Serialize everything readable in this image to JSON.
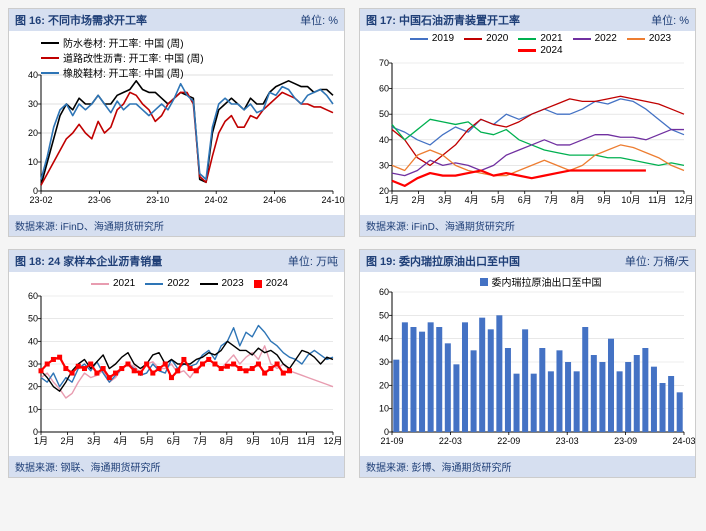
{
  "grid": {
    "panels": [
      {
        "id": "p16",
        "title_left": "图 16:    不同市场需求开工率",
        "title_right": "单位: %",
        "footer": "数据来源: iFinD、海通期货研究所",
        "chart": {
          "type": "line",
          "bg": "#ffffff",
          "grid_color": "#bfbfbf",
          "axis_color": "#000000",
          "label_fontsize": 9,
          "ylim": [
            0,
            40
          ],
          "ytick_step": 10,
          "xlabels": [
            "23-02",
            "23-06",
            "23-10",
            "24-02",
            "24-06",
            "24-10"
          ],
          "xindex": 47,
          "series": [
            {
              "name": "防水卷材: 开工率: 中国 (周)",
              "color": "#000000",
              "width": 1.6,
              "y": [
                2,
                10,
                18,
                26,
                30,
                28,
                32,
                30,
                30,
                33,
                30,
                30,
                33,
                34,
                35,
                38,
                35,
                34,
                34,
                32,
                30,
                32,
                34,
                33,
                32,
                4,
                3,
                20,
                28,
                30,
                32,
                30,
                28,
                32,
                30,
                30,
                34,
                36,
                37,
                38,
                37,
                36,
                36,
                34,
                35,
                35,
                33
              ]
            },
            {
              "name": "道路改性沥青: 开工率: 中国 (周)",
              "color": "#c00000",
              "width": 1.6,
              "y": [
                2,
                6,
                10,
                14,
                18,
                20,
                23,
                20,
                18,
                24,
                20,
                22,
                28,
                30,
                34,
                33,
                30,
                28,
                24,
                26,
                30,
                32,
                34,
                34,
                30,
                5,
                3,
                12,
                20,
                24,
                26,
                22,
                22,
                26,
                25,
                28,
                30,
                32,
                34,
                33,
                32,
                30,
                30,
                29,
                29,
                28,
                27
              ]
            },
            {
              "name": "橡胶鞋材: 开工率: 中国 (周)",
              "color": "#2e75b6",
              "width": 1.6,
              "y": [
                4,
                12,
                22,
                28,
                30,
                26,
                30,
                28,
                30,
                33,
                30,
                27,
                31,
                28,
                30,
                30,
                28,
                26,
                28,
                30,
                28,
                32,
                37,
                33,
                31,
                6,
                4,
                22,
                30,
                32,
                30,
                30,
                28,
                30,
                27,
                28,
                34,
                33,
                36,
                35,
                32,
                30,
                33,
                34,
                35,
                33,
                30
              ]
            }
          ]
        }
      },
      {
        "id": "p17",
        "title_left": "图 17:    中国石油沥青装置开工率",
        "title_right": "单位: %",
        "footer": "数据来源: iFinD、海通期货研究所",
        "chart": {
          "type": "line",
          "bg": "#ffffff",
          "grid_color": "#d9d9d9",
          "axis_color": "#000000",
          "label_fontsize": 9,
          "ylim": [
            20,
            70
          ],
          "ytick_step": 10,
          "xlabels": [
            "1月",
            "2月",
            "3月",
            "4月",
            "5月",
            "6月",
            "7月",
            "8月",
            "9月",
            "10月",
            "11月",
            "12月"
          ],
          "xindex": 23,
          "series": [
            {
              "name": "2019",
              "color": "#4472c4",
              "width": 1.3,
              "y": [
                45,
                43,
                40,
                38,
                42,
                45,
                43,
                48,
                46,
                50,
                48,
                50,
                52,
                50,
                50,
                52,
                55,
                54,
                56,
                55,
                52,
                48,
                44,
                42
              ]
            },
            {
              "name": "2020",
              "color": "#c00000",
              "width": 1.3,
              "y": [
                44,
                40,
                33,
                30,
                34,
                38,
                44,
                48,
                46,
                45,
                47,
                50,
                52,
                54,
                56,
                55,
                55,
                56,
                57,
                56,
                55,
                54,
                52,
                50
              ]
            },
            {
              "name": "2021",
              "color": "#00b050",
              "width": 1.3,
              "y": [
                46,
                40,
                44,
                48,
                47,
                46,
                47,
                43,
                42,
                44,
                40,
                38,
                36,
                35,
                34,
                34,
                34,
                33,
                33,
                32,
                31,
                30,
                31,
                30
              ]
            },
            {
              "name": "2022",
              "color": "#7030a0",
              "width": 1.3,
              "y": [
                27,
                26,
                28,
                32,
                30,
                31,
                30,
                28,
                30,
                34,
                36,
                38,
                40,
                38,
                38,
                40,
                42,
                42,
                41,
                41,
                40,
                42,
                44,
                44
              ]
            },
            {
              "name": "2023",
              "color": "#ed7d31",
              "width": 1.3,
              "y": [
                30,
                28,
                34,
                36,
                34,
                30,
                28,
                27,
                26,
                26,
                28,
                30,
                32,
                30,
                28,
                30,
                34,
                36,
                38,
                37,
                35,
                33,
                30,
                28
              ]
            },
            {
              "name": "2024",
              "color": "#ff0000",
              "width": 2.2,
              "y": [
                24,
                22,
                25,
                27,
                26,
                26,
                27,
                28,
                26,
                27,
                26,
                25,
                26,
                27,
                28,
                28,
                28,
                28,
                28,
                28,
                28,
                null,
                null,
                null
              ]
            }
          ]
        }
      },
      {
        "id": "p18",
        "title_left": "图 18:    24 家样本企业沥青销量",
        "title_right": "单位: 万吨",
        "footer": "数据来源: 钢联、海通期货研究所",
        "chart": {
          "type": "line",
          "bg": "#ffffff",
          "grid_color": "#d9d9d9",
          "axis_color": "#000000",
          "label_fontsize": 9,
          "ylim": [
            0,
            60
          ],
          "ytick_step": 10,
          "xlabels": [
            "1月",
            "2月",
            "3月",
            "4月",
            "5月",
            "6月",
            "7月",
            "8月",
            "9月",
            "10月",
            "11月",
            "12月"
          ],
          "xindex": 47,
          "series": [
            {
              "name": "2021",
              "color": "#e89cb0",
              "width": 1.4,
              "marker": "none",
              "y": [
                24,
                26,
                22,
                19,
                15,
                17,
                22,
                26,
                24,
                25,
                27,
                22,
                24,
                28,
                30,
                29,
                26,
                30,
                31,
                28,
                28,
                30,
                26,
                27,
                24,
                28,
                30,
                32,
                30,
                28,
                31,
                34,
                30,
                33,
                35,
                32,
                38,
                30,
                28,
                30,
                27,
                26,
                25,
                24,
                23,
                22,
                21,
                20
              ]
            },
            {
              "name": "2022",
              "color": "#2e75b6",
              "width": 1.4,
              "marker": "none",
              "y": [
                24,
                22,
                26,
                20,
                24,
                22,
                28,
                30,
                27,
                31,
                26,
                22,
                25,
                28,
                30,
                28,
                25,
                26,
                30,
                27,
                26,
                32,
                28,
                30,
                29,
                30,
                34,
                36,
                32,
                38,
                40,
                46,
                38,
                44,
                42,
                47,
                44,
                40,
                38,
                35,
                33,
                32,
                30,
                34,
                36,
                34,
                32,
                33
              ]
            },
            {
              "name": "2023",
              "color": "#000000",
              "width": 1.4,
              "marker": "none",
              "y": [
                27,
                24,
                20,
                18,
                22,
                27,
                30,
                32,
                28,
                31,
                34,
                28,
                30,
                33,
                35,
                30,
                28,
                30,
                34,
                35,
                30,
                32,
                30,
                30,
                30,
                32,
                33,
                35,
                34,
                36,
                40,
                38,
                36,
                36,
                34,
                37,
                35,
                36,
                34,
                30,
                28,
                32,
                36,
                35,
                33,
                30,
                33,
                32
              ]
            },
            {
              "name": "2024",
              "color": "#ff0000",
              "width": 2.2,
              "marker": "square",
              "y": [
                27,
                30,
                32,
                33,
                28,
                26,
                29,
                28,
                30,
                26,
                28,
                24,
                26,
                28,
                30,
                27,
                26,
                30,
                26,
                28,
                30,
                24,
                27,
                32,
                28,
                27,
                30,
                32,
                30,
                28,
                29,
                30,
                28,
                27,
                28,
                30,
                26,
                28,
                30,
                26,
                27,
                null,
                null,
                null,
                null,
                null,
                null,
                null
              ]
            }
          ]
        }
      },
      {
        "id": "p19",
        "title_left": "图 19:    委内瑞拉原油出口至中国",
        "title_right": "单位: 万桶/天",
        "footer": "数据来源: 彭博、海通期货研究所",
        "chart": {
          "type": "bar",
          "bg": "#ffffff",
          "grid_color": "#d9d9d9",
          "axis_color": "#000000",
          "label_fontsize": 9,
          "ylim": [
            0,
            60
          ],
          "ytick_step": 10,
          "xlabels": [
            "21-09",
            "22-03",
            "22-09",
            "23-03",
            "23-09",
            "24-03"
          ],
          "xindex": 34,
          "series": [
            {
              "name": "委内瑞拉原油出口至中国",
              "color": "#4472c4",
              "y": [
                31,
                47,
                45,
                43,
                47,
                45,
                38,
                29,
                47,
                35,
                49,
                44,
                50,
                36,
                25,
                44,
                25,
                36,
                26,
                35,
                30,
                26,
                45,
                33,
                30,
                40,
                26,
                30,
                33,
                36,
                28,
                21,
                24,
                17
              ]
            }
          ]
        }
      }
    ]
  }
}
